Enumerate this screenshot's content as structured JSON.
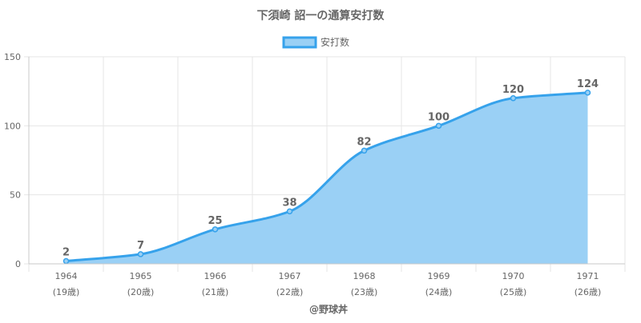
{
  "chart_data": {
    "type": "area",
    "title": "下須崎 詔一の通算安打数",
    "legend": {
      "label": "安打数",
      "position": "top"
    },
    "categories": [
      "1964",
      "1965",
      "1966",
      "1967",
      "1968",
      "1969",
      "1970",
      "1971"
    ],
    "category_sublabels": [
      "(19歳)",
      "(20歳)",
      "(21歳)",
      "(22歳)",
      "(23歳)",
      "(24歳)",
      "(25歳)",
      "(26歳)"
    ],
    "series": [
      {
        "name": "安打数",
        "values": [
          2,
          7,
          25,
          38,
          82,
          100,
          120,
          124
        ]
      }
    ],
    "ylim": [
      0,
      150
    ],
    "yticks": [
      0,
      50,
      100,
      150
    ],
    "grid": true,
    "colors": {
      "line": "#36a2eb",
      "fill": "#9ad0f5",
      "grid": "#e6e6e6",
      "text": "#666666"
    },
    "credit": "@野球丼"
  }
}
